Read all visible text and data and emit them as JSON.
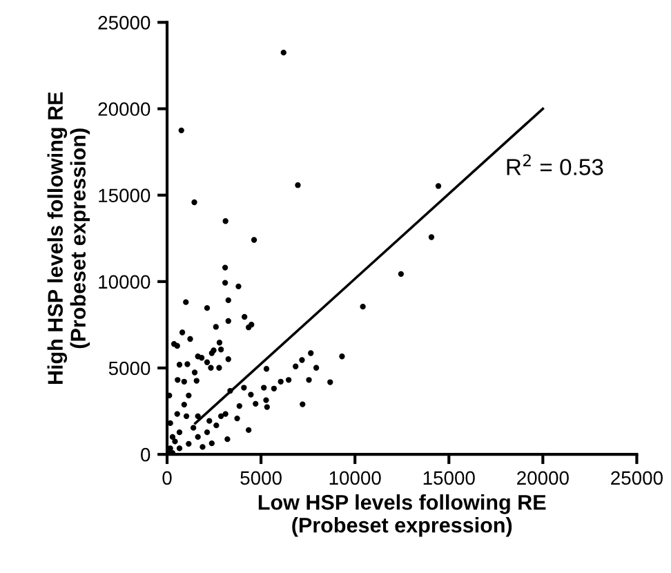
{
  "chart_data": {
    "type": "scatter",
    "xlabel": "Low HSP levels following RE\n(Probeset expression)",
    "ylabel": "High HSP levels following RE\n(Probeset expression)",
    "xlim": [
      0,
      25000
    ],
    "ylim": [
      0,
      25000
    ],
    "xticks": [
      0,
      5000,
      10000,
      15000,
      20000,
      25000
    ],
    "yticks": [
      0,
      5000,
      10000,
      15000,
      20000,
      25000
    ],
    "grid": false,
    "legend": false,
    "marker": "circle",
    "series": [
      {
        "color": "#000000",
        "x": [
          6200,
          760,
          6960,
          14440,
          1450,
          3110,
          4630,
          14070,
          12450,
          3090,
          3090,
          3800,
          3260,
          1000,
          10420,
          2130,
          3260,
          4120,
          4490,
          4340,
          2600,
          810,
          370,
          540,
          1230,
          2790,
          2870,
          2480,
          1640,
          1840,
          2380,
          3260,
          2130,
          2330,
          2770,
          660,
          1080,
          1470,
          560,
          910,
          1570,
          5290,
          7650,
          7180,
          9310,
          6840,
          7940,
          7550,
          8680,
          6050,
          6470,
          5690,
          7210,
          5150,
          5270,
          5320,
          4710,
          4340,
          3210,
          2380,
          1890,
          4090,
          4460,
          3850,
          3360,
          3730,
          3110,
          2620,
          2130,
          1640,
          1150,
          660,
          290,
          170,
          420,
          660,
          170,
          540,
          910,
          1150,
          120,
          290,
          1400,
          1640,
          1030,
          50,
          2870,
          2250
        ],
        "values": [
          23250,
          18750,
          15580,
          15530,
          14590,
          13500,
          12410,
          12570,
          10440,
          10810,
          9930,
          9720,
          8920,
          8810,
          8550,
          8470,
          7720,
          7960,
          7510,
          7350,
          7380,
          7060,
          6390,
          6280,
          6680,
          6470,
          6070,
          6020,
          5670,
          5590,
          5860,
          5510,
          5330,
          5010,
          5010,
          5190,
          5220,
          4740,
          4310,
          4210,
          4260,
          4950,
          5860,
          5460,
          5670,
          5090,
          5010,
          4310,
          4180,
          4210,
          4310,
          3810,
          2900,
          3860,
          3140,
          2740,
          2930,
          1410,
          880,
          640,
          430,
          3860,
          3460,
          2800,
          3680,
          2080,
          2340,
          1680,
          1280,
          1010,
          610,
          350,
          80,
          350,
          750,
          1280,
          1810,
          2340,
          2880,
          3410,
          3410,
          1010,
          1540,
          2210,
          2210,
          80,
          2210,
          1940
        ]
      },
      {
        "type": "line",
        "color": "#000000",
        "x": [
          1500,
          20000
        ],
        "values": [
          1800,
          20000
        ],
        "marker": "none",
        "line_style": "solid"
      }
    ],
    "annotations": [
      "R$^{2}$ = 0.53"
    ]
  }
}
